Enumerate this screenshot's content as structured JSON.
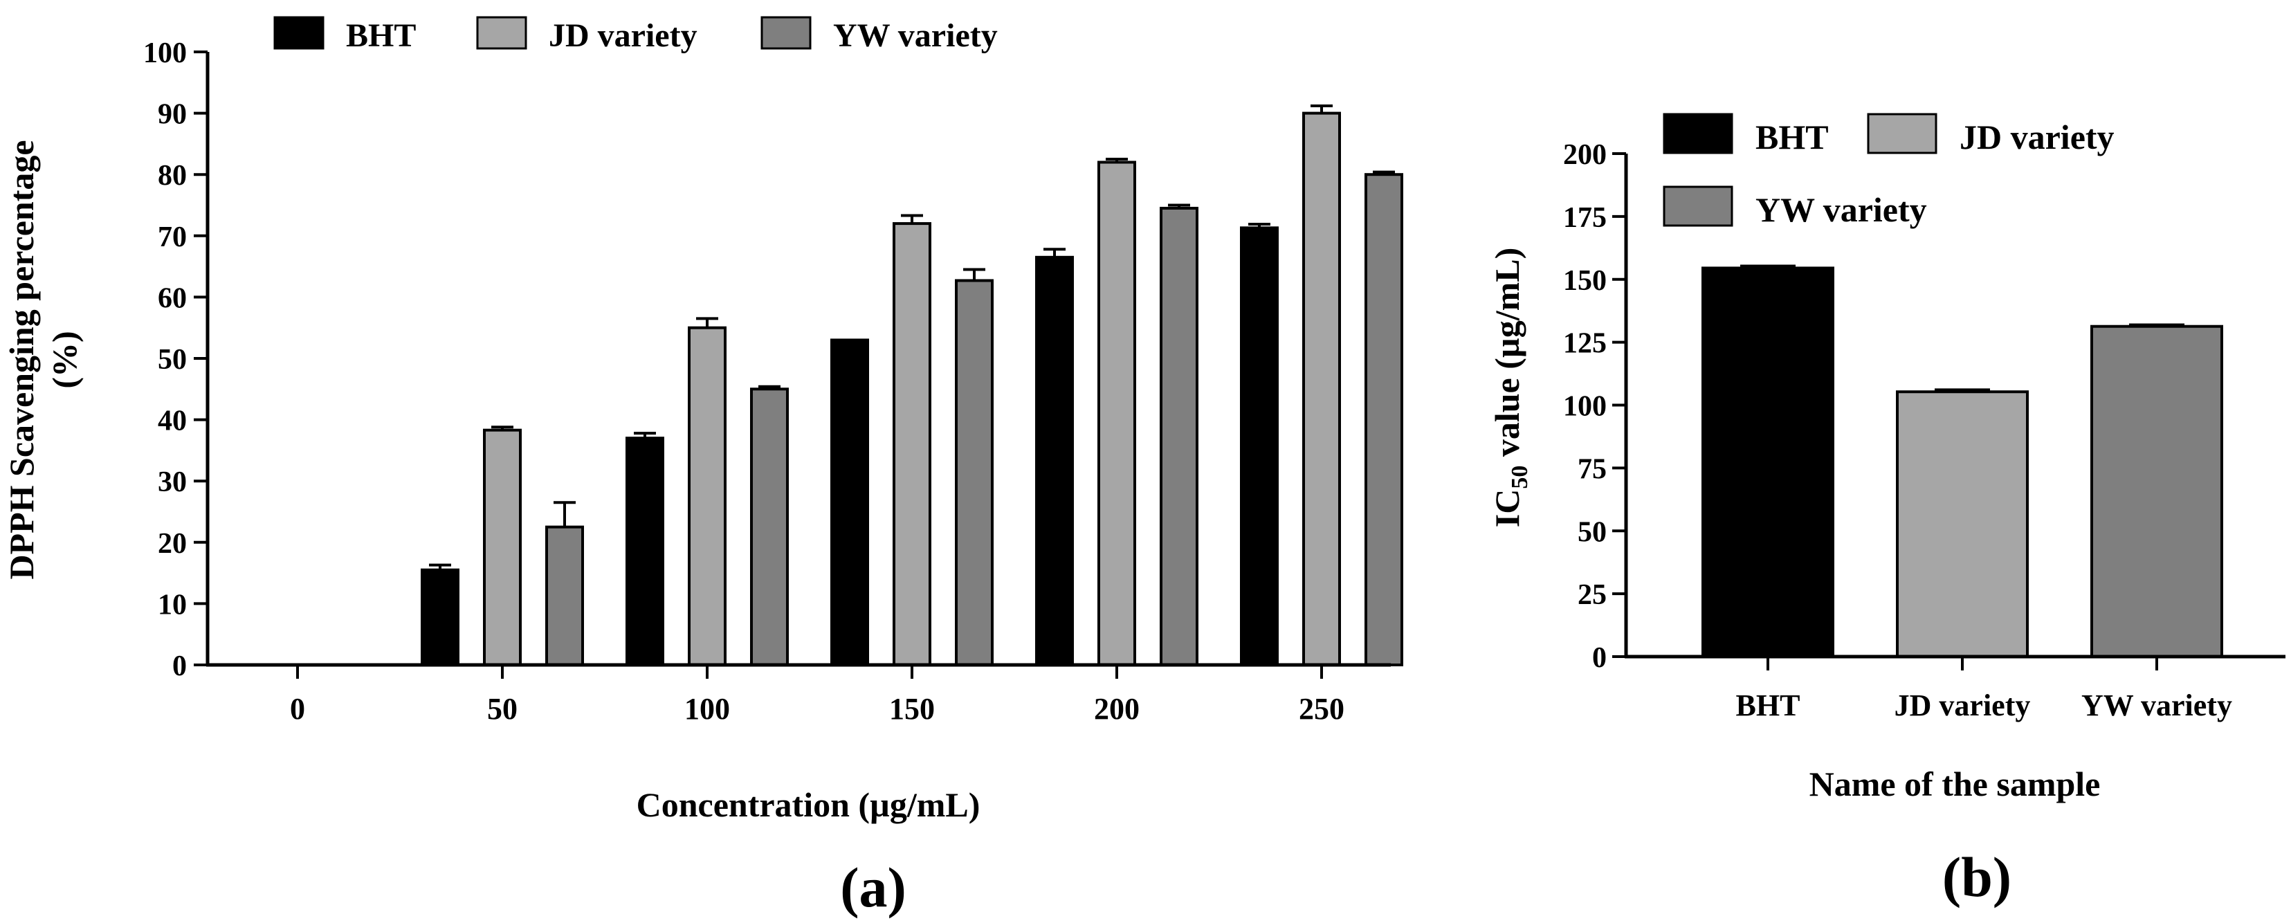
{
  "colors": {
    "BHT": "#000000",
    "JD variety": "#a6a6a6",
    "YW variety": "#7f7f7f"
  },
  "chart_data": [
    {
      "type": "bar",
      "panel_label": "(a)",
      "title": "",
      "xlabel": "Concentration (µg/mL)",
      "ylabel_line1": "DPPH Scavenging percentage",
      "ylabel_line2": "(%)",
      "ylim": [
        0,
        100
      ],
      "ytick_step": 10,
      "categories": [
        "0",
        "50",
        "100",
        "150",
        "200",
        "250"
      ],
      "legend": [
        "BHT",
        "JD variety",
        "YW variety"
      ],
      "legend_position": "top",
      "series": [
        {
          "name": "BHT",
          "values": [
            0,
            15.5,
            37,
            53,
            66.5,
            71.3
          ],
          "errors": [
            0,
            0.8,
            0.8,
            0,
            1.3,
            0.6
          ]
        },
        {
          "name": "JD variety",
          "values": [
            0,
            38.3,
            55,
            72,
            82,
            90
          ],
          "errors": [
            0,
            0.5,
            1.5,
            1.3,
            0.5,
            1.2
          ]
        },
        {
          "name": "YW variety",
          "values": [
            0,
            22.5,
            45,
            62.7,
            74.5,
            80
          ],
          "errors": [
            0,
            4,
            0.4,
            1.8,
            0.5,
            0.4
          ]
        }
      ]
    },
    {
      "type": "bar",
      "panel_label": "(b)",
      "title": "",
      "xlabel": "Name of the sample",
      "ylabel_prefix": "IC",
      "ylabel_sub": "50",
      "ylabel_suffix": " value (µg/mL)",
      "ylim": [
        0,
        200
      ],
      "ytick_step": 25,
      "categories": [
        "BHT",
        "JD variety",
        "YW variety"
      ],
      "legend": [
        "BHT",
        "JD variety",
        "YW variety"
      ],
      "legend_position": "top-left",
      "values": [
        154.5,
        105.3,
        131.3
      ],
      "errors": [
        0.8,
        0.8,
        0.6
      ]
    }
  ]
}
